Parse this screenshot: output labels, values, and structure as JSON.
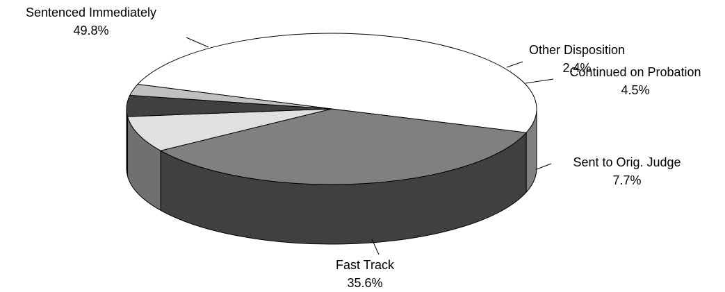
{
  "chart_data": {
    "type": "pie",
    "style": "3d",
    "legend": "none",
    "slices": [
      {
        "label": "Sentenced Immediately",
        "value": 49.8,
        "value_text": "49.8%",
        "color": "#ffffff"
      },
      {
        "label": "Fast Track",
        "value": 35.6,
        "value_text": "35.6%",
        "color": "#808080"
      },
      {
        "label": "Sent to Orig. Judge",
        "value": 7.7,
        "value_text": "7.7%",
        "color": "#e0e0e0"
      },
      {
        "label": "Continued on Probation",
        "value": 4.5,
        "value_text": "4.5%",
        "color": "#404040"
      },
      {
        "label": "Other Disposition",
        "value": 2.4,
        "value_text": "2.4%",
        "color": "#c0c0c0"
      }
    ]
  }
}
